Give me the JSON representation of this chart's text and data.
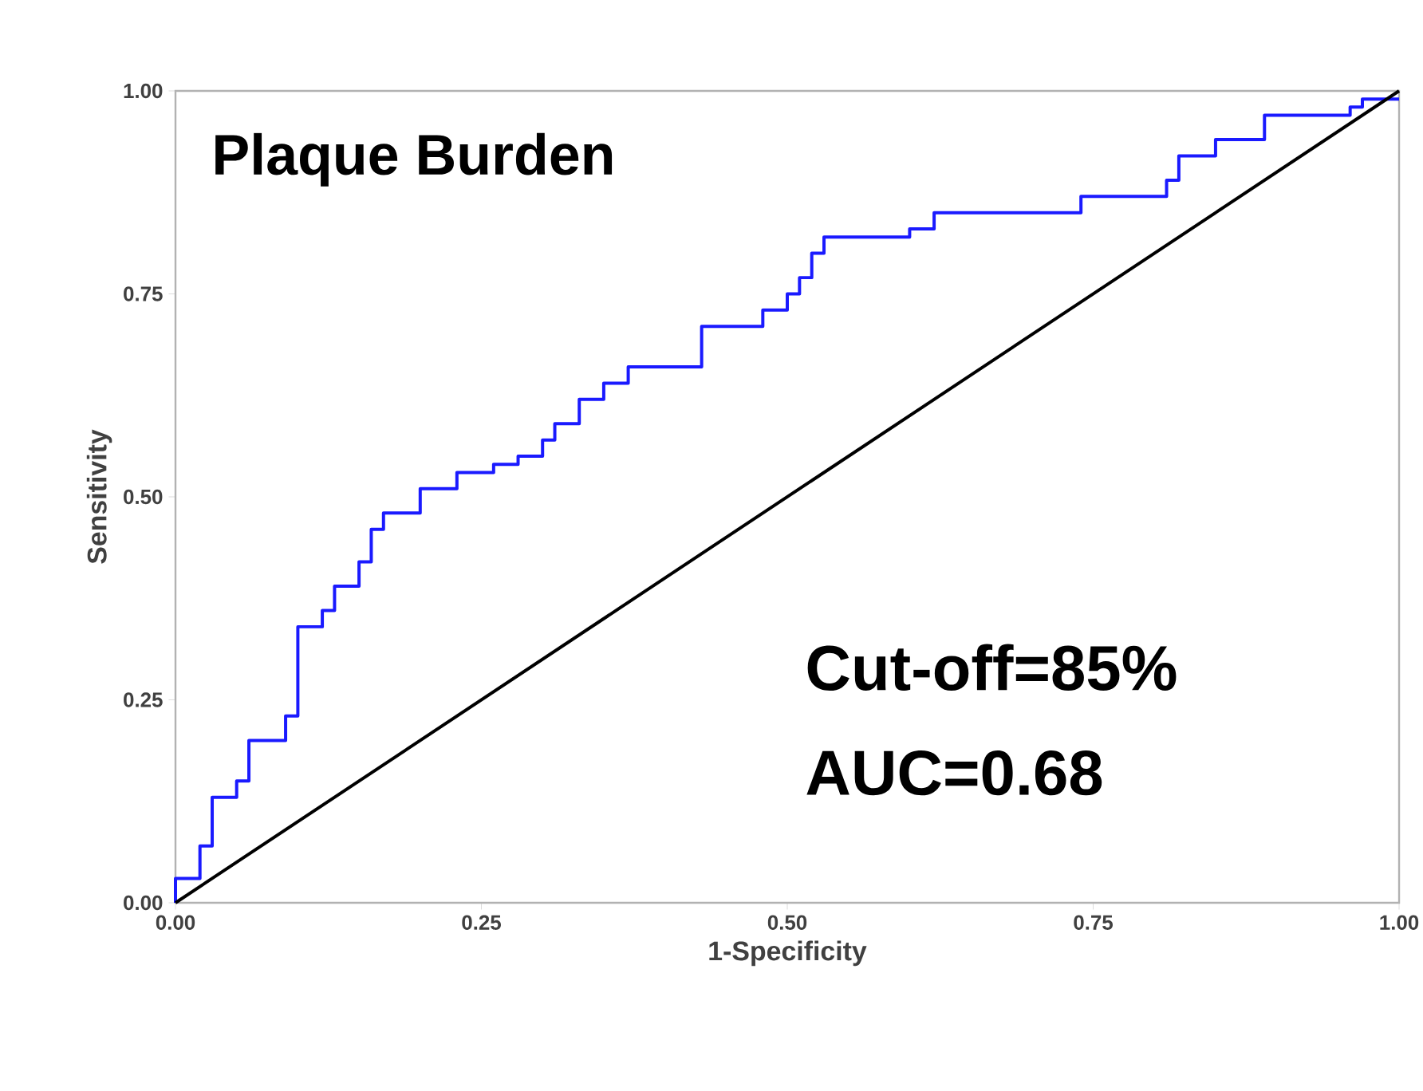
{
  "chart_data": {
    "type": "line",
    "title": "Plaque Burden",
    "xlabel": "1-Specificity",
    "ylabel": "Sensitivity",
    "xlim": [
      0,
      1
    ],
    "ylim": [
      0,
      1
    ],
    "xticks": [
      {
        "value": 0,
        "label": "0.00"
      },
      {
        "value": 0.25,
        "label": "0.25"
      },
      {
        "value": 0.5,
        "label": "0.50"
      },
      {
        "value": 0.75,
        "label": "0.75"
      },
      {
        "value": 1,
        "label": "1.00"
      }
    ],
    "yticks": [
      {
        "value": 0,
        "label": "0.00"
      },
      {
        "value": 0.25,
        "label": "0.25"
      },
      {
        "value": 0.5,
        "label": "0.50"
      },
      {
        "value": 0.75,
        "label": "0.75"
      },
      {
        "value": 1,
        "label": "1.00"
      }
    ],
    "grid": false,
    "marker": "none",
    "line_style": "solid",
    "series": [
      {
        "color": "#1a1aff",
        "x": [
          0,
          0,
          0.02,
          0.02,
          0.03,
          0.03,
          0.05,
          0.05,
          0.06,
          0.06,
          0.09,
          0.09,
          0.1,
          0.1,
          0.12,
          0.12,
          0.13,
          0.13,
          0.15,
          0.15,
          0.16,
          0.16,
          0.17,
          0.17,
          0.2,
          0.2,
          0.23,
          0.23,
          0.26,
          0.26,
          0.28,
          0.28,
          0.3,
          0.3,
          0.31,
          0.31,
          0.33,
          0.33,
          0.35,
          0.35,
          0.37,
          0.37,
          0.43,
          0.43,
          0.48,
          0.48,
          0.5,
          0.5,
          0.51,
          0.51,
          0.52,
          0.52,
          0.53,
          0.53,
          0.6,
          0.6,
          0.62,
          0.62,
          0.74,
          0.74,
          0.81,
          0.81,
          0.82,
          0.82,
          0.85,
          0.85,
          0.89,
          0.89,
          0.96,
          0.96,
          0.97,
          0.97,
          1
        ],
        "values": [
          0,
          0.03,
          0.03,
          0.07,
          0.07,
          0.13,
          0.13,
          0.15,
          0.15,
          0.2,
          0.2,
          0.23,
          0.23,
          0.34,
          0.34,
          0.36,
          0.36,
          0.39,
          0.39,
          0.42,
          0.42,
          0.46,
          0.46,
          0.48,
          0.48,
          0.51,
          0.51,
          0.53,
          0.53,
          0.54,
          0.54,
          0.55,
          0.55,
          0.57,
          0.57,
          0.59,
          0.59,
          0.62,
          0.62,
          0.64,
          0.64,
          0.66,
          0.66,
          0.71,
          0.71,
          0.73,
          0.73,
          0.75,
          0.75,
          0.77,
          0.77,
          0.8,
          0.8,
          0.82,
          0.82,
          0.83,
          0.83,
          0.85,
          0.85,
          0.87,
          0.87,
          0.89,
          0.89,
          0.92,
          0.92,
          0.94,
          0.94,
          0.97,
          0.97,
          0.98,
          0.98,
          0.99,
          0.99
        ]
      },
      {
        "color": "#000000",
        "x": [
          0,
          1
        ],
        "values": [
          0,
          1
        ]
      }
    ],
    "annotations": [
      "Cut-off=85%",
      "AUC=0.68"
    ]
  }
}
